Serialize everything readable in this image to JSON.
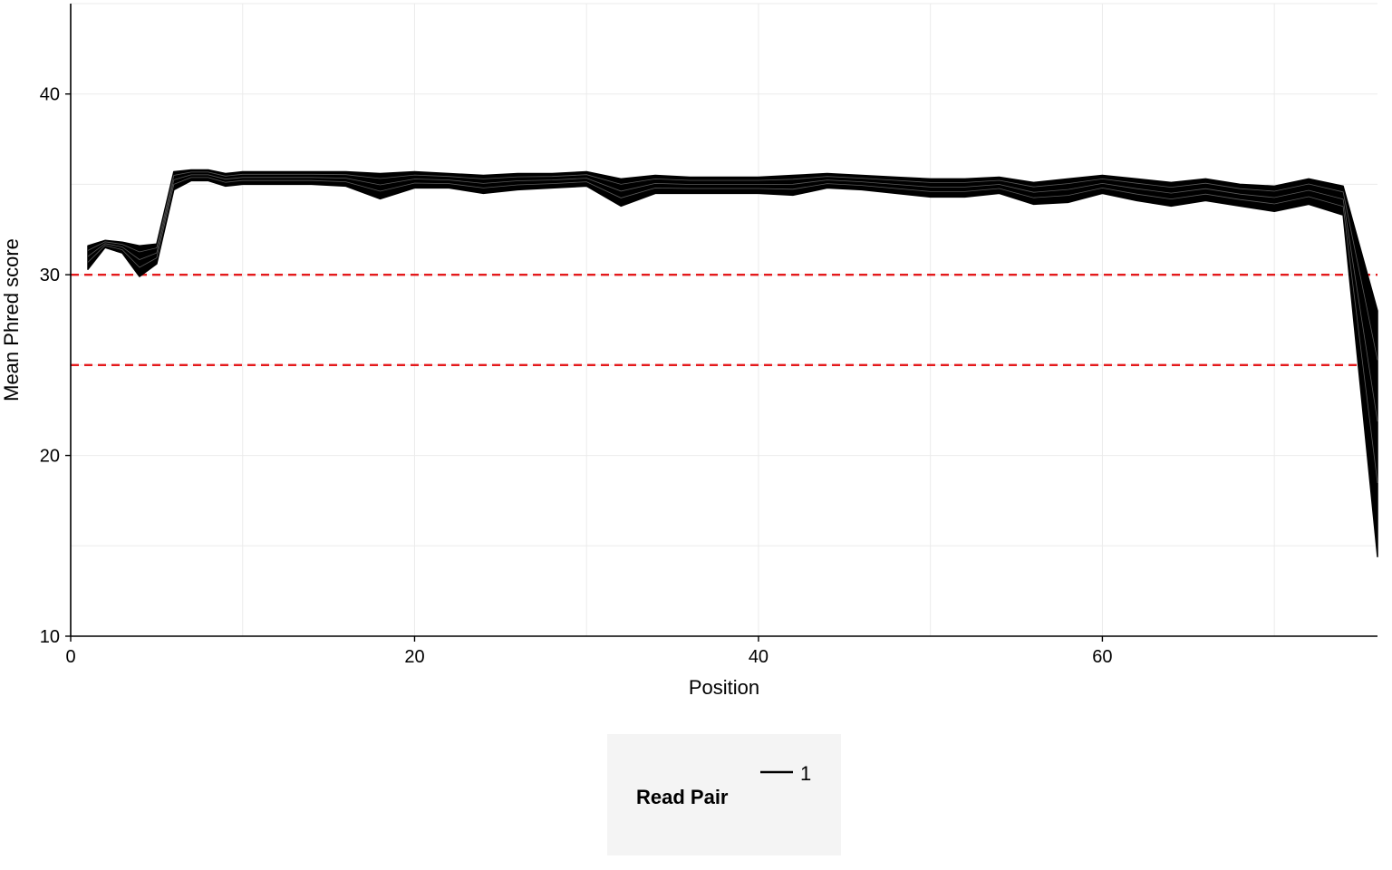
{
  "chart_data": {
    "type": "line",
    "xlabel": "Position",
    "ylabel": "Mean Phred score",
    "xlim": [
      0,
      76
    ],
    "ylim": [
      10,
      45
    ],
    "xticks": [
      0,
      20,
      40,
      60
    ],
    "yticks": [
      10,
      20,
      30,
      40
    ],
    "grid": true,
    "series": [
      {
        "name": "1",
        "role": "upper envelope",
        "color": "#000000",
        "x": [
          1,
          2,
          3,
          4,
          5,
          6,
          7,
          8,
          9,
          10,
          12,
          14,
          16,
          18,
          20,
          22,
          24,
          26,
          28,
          30,
          32,
          34,
          36,
          38,
          40,
          42,
          44,
          46,
          48,
          50,
          52,
          54,
          56,
          58,
          60,
          62,
          64,
          66,
          68,
          70,
          72,
          74,
          76
        ],
        "y": [
          31.6,
          31.9,
          31.8,
          31.6,
          31.7,
          35.7,
          35.8,
          35.8,
          35.6,
          35.7,
          35.7,
          35.7,
          35.7,
          35.6,
          35.7,
          35.6,
          35.5,
          35.6,
          35.6,
          35.7,
          35.3,
          35.5,
          35.4,
          35.4,
          35.4,
          35.5,
          35.6,
          35.5,
          35.4,
          35.3,
          35.3,
          35.4,
          35.1,
          35.3,
          35.5,
          35.3,
          35.1,
          35.3,
          35.0,
          34.9,
          35.3,
          34.9,
          28.0
        ]
      },
      {
        "name": "1",
        "role": "lower envelope",
        "color": "#000000",
        "x": [
          1,
          2,
          3,
          4,
          5,
          6,
          7,
          8,
          9,
          10,
          12,
          14,
          16,
          18,
          20,
          22,
          24,
          26,
          28,
          30,
          32,
          34,
          36,
          38,
          40,
          42,
          44,
          46,
          48,
          50,
          52,
          54,
          56,
          58,
          60,
          62,
          64,
          66,
          68,
          70,
          72,
          74,
          76
        ],
        "y": [
          30.3,
          31.5,
          31.2,
          29.9,
          30.6,
          34.7,
          35.2,
          35.2,
          34.9,
          35.0,
          35.0,
          35.0,
          34.9,
          34.2,
          34.8,
          34.8,
          34.5,
          34.7,
          34.8,
          34.9,
          33.8,
          34.5,
          34.5,
          34.5,
          34.5,
          34.4,
          34.8,
          34.7,
          34.5,
          34.3,
          34.3,
          34.5,
          33.9,
          34.0,
          34.5,
          34.1,
          33.8,
          34.1,
          33.8,
          33.5,
          33.9,
          33.3,
          14.4
        ]
      }
    ],
    "reference_lines": [
      {
        "y": 30,
        "color": "#e41a1c",
        "style": "dashed"
      },
      {
        "y": 25,
        "color": "#e41a1c",
        "style": "dashed"
      }
    ],
    "legend": {
      "title": "Read Pair",
      "entries": [
        "1"
      ],
      "placement": "bottom"
    }
  }
}
